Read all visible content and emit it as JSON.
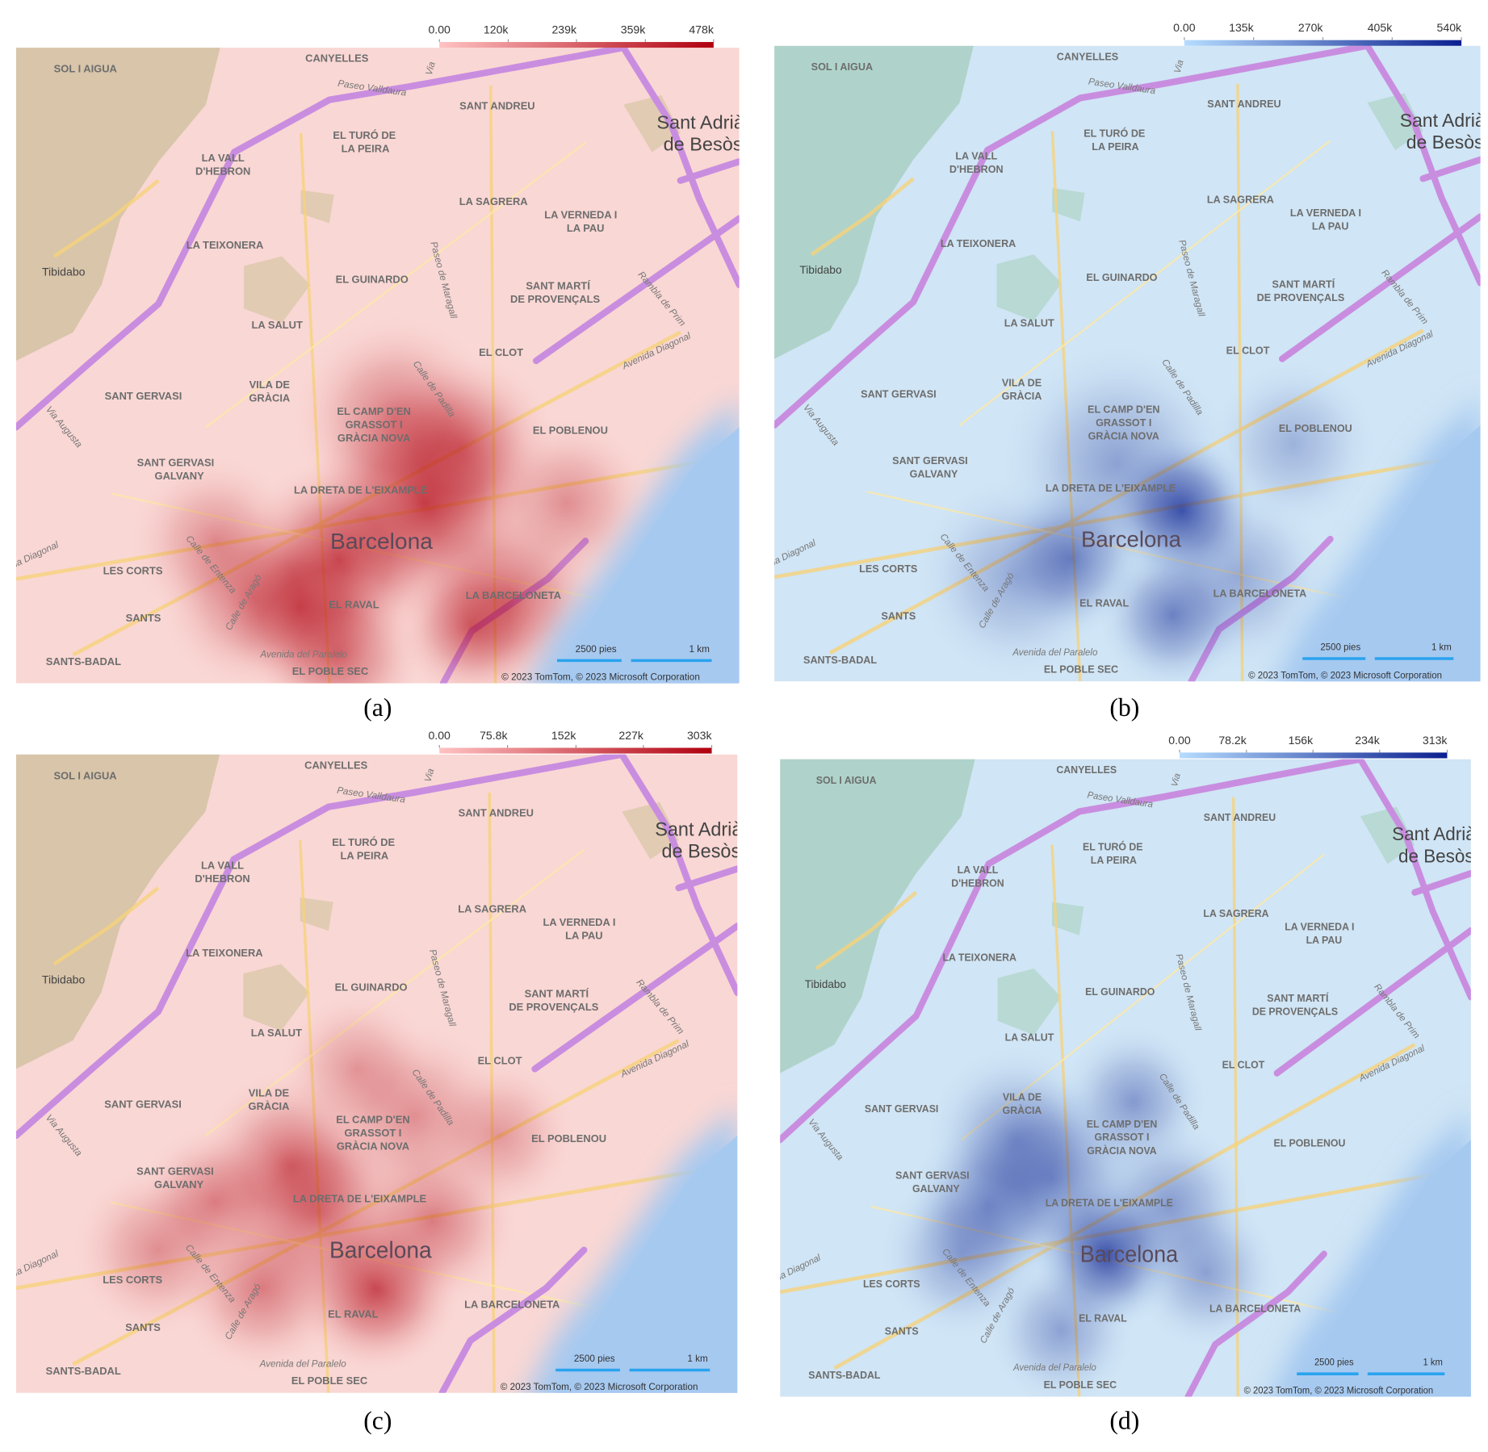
{
  "panels": [
    {
      "caption": "(a)",
      "colorbar": {
        "colors": [
          "#ffc2c2",
          "#b0000f"
        ],
        "ticks": [
          {
            "value": 0,
            "label": "0.00"
          },
          {
            "value": 120000,
            "label": "120k"
          },
          {
            "value": 239000,
            "label": "239k"
          },
          {
            "value": 359000,
            "label": "359k"
          },
          {
            "value": 478000,
            "label": "478k"
          }
        ]
      }
    },
    {
      "caption": "(b)",
      "colorbar": {
        "colors": [
          "#b5dcff",
          "#0a1f8f"
        ],
        "ticks": [
          {
            "value": 0,
            "label": "0.00"
          },
          {
            "value": 135000,
            "label": "135k"
          },
          {
            "value": 270000,
            "label": "270k"
          },
          {
            "value": 405000,
            "label": "405k"
          },
          {
            "value": 540000,
            "label": "540k"
          }
        ]
      }
    },
    {
      "caption": "(c)",
      "colorbar": {
        "colors": [
          "#ffc2c2",
          "#b0000f"
        ],
        "ticks": [
          {
            "value": 0,
            "label": "0.00"
          },
          {
            "value": 75800,
            "label": "75.8k"
          },
          {
            "value": 152000,
            "label": "152k"
          },
          {
            "value": 227000,
            "label": "227k"
          },
          {
            "value": 303000,
            "label": "303k"
          }
        ]
      }
    },
    {
      "caption": "(d)",
      "colorbar": {
        "colors": [
          "#b5dcff",
          "#0a1f8f"
        ],
        "ticks": [
          {
            "value": 0,
            "label": "0.00"
          },
          {
            "value": 78200,
            "label": "78.2k"
          },
          {
            "value": 156000,
            "label": "156k"
          },
          {
            "value": 234000,
            "label": "234k"
          },
          {
            "value": 313000,
            "label": "313k"
          }
        ]
      }
    }
  ],
  "map": {
    "labels": [
      "SOL I AIGUA",
      "CANYELLES",
      "Paseo Valldaura",
      "SANT ANDREU",
      "Sant Adrià",
      "de Besòs",
      "EL TURÓ DE",
      "LA PEIRA",
      "LA VALL",
      "D'HEBRON",
      "LA SAGRERA",
      "LA VERNEDA I",
      "LA PAU",
      "LA TEIXONERA",
      "Tibidabo",
      "EL GUINARDO",
      "SANT MARTÍ",
      "DE PROVENÇALS",
      "LA SALUT",
      "EL CLOT",
      "Avenida Diagonal",
      "SANT GERVASI",
      "VILA DE",
      "GRÀCIA",
      "EL CAMP D'EN",
      "GRASSOT I",
      "GRÀCIA NOVA",
      "EL POBLENOU",
      "SANT GERVASI",
      "GALVANY",
      "LA DRETA DE L'EIXAMPLE",
      "Barcelona",
      "LES CORTS",
      "EL RAVAL",
      "LA BARCELONETA",
      "SANTS",
      "Avenida del Paralelo",
      "SANTS-BADAL",
      "EL POBLE SEC",
      "Via Augusta",
      "Calle de Padilla",
      "Paseo de Maragall",
      "Rambla de Prim",
      "Calle de Entenza",
      "Calle de Aragó",
      "da Diagonal",
      "Via"
    ],
    "scale_bar": [
      "2500 pies",
      "1 km"
    ],
    "attribution": "© 2023 TomTom, © 2023 Microsoft Corporation"
  }
}
